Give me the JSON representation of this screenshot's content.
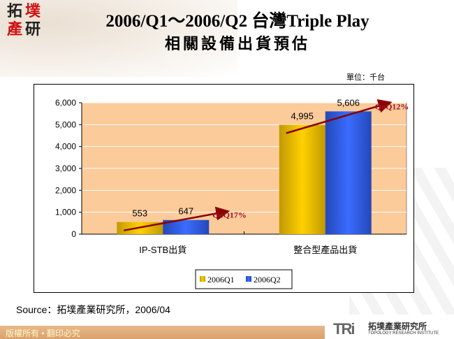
{
  "logo": {
    "chars": [
      "拓",
      "墣",
      "產",
      "研"
    ]
  },
  "title": {
    "line1": "2006/Q1～2006/Q2 台灣Triple Play",
    "line2": "相關設備出貨預估"
  },
  "unit": "單位：千台",
  "chart_data": {
    "type": "bar",
    "categories": [
      "IP-STB出貨",
      "整合型產品出貨"
    ],
    "series": [
      {
        "name": "2006Q1",
        "values": [
          553,
          4995
        ],
        "labels": [
          "553",
          "4,995"
        ],
        "color": "#f5c400"
      },
      {
        "name": "2006Q2",
        "values": [
          647,
          5606
        ],
        "labels": [
          "647",
          "5,606"
        ],
        "color": "#2f5fe8"
      }
    ],
    "ylim": [
      0,
      6000
    ],
    "yticks": [
      0,
      1000,
      2000,
      3000,
      4000,
      5000,
      6000
    ],
    "ytick_labels": [
      "0",
      "1,000",
      "2,000",
      "3,000",
      "4,000",
      "5,000",
      "6,000"
    ],
    "grid": true,
    "plot_background": "#fccb9a",
    "legend_placement": "bottom",
    "annotations": [
      {
        "text": "QoQ17%",
        "category": "IP-STB出貨"
      },
      {
        "text": "QoQ12%",
        "category": "整合型產品出貨"
      }
    ],
    "annotation_color": "#a01020"
  },
  "source": "Source：拓墣產業研究所，2006/04",
  "footer": {
    "copyright": "版權所有 • 翻印必究",
    "brand_mark": "TRi",
    "brand_cn": "拓墣產業研究所",
    "brand_en": "TOPOLOGY RESEARCH INSTITUTE"
  }
}
